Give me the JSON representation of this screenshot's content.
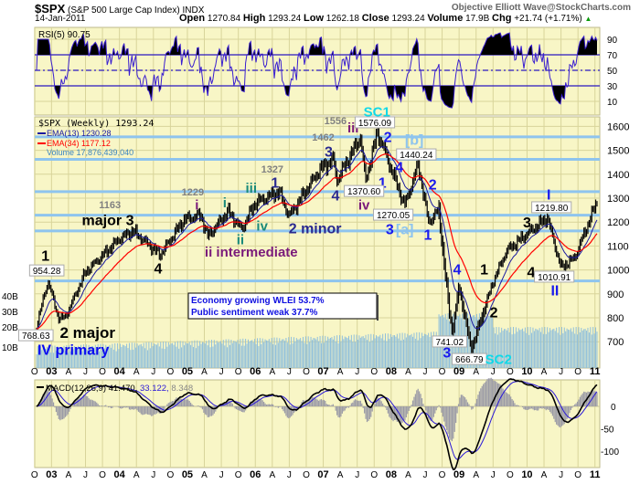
{
  "header": {
    "symbol": "$SPX",
    "name": "(S&P 500 Large Cap Index) INDX",
    "brand": "Objective Elliott Wave@StockCharts.com",
    "date": "14-Jan-2011",
    "open_label": "Open",
    "open": "1270.84",
    "high_label": "High",
    "high": "1293.24",
    "low_label": "Low",
    "low": "1262.18",
    "close_label": "Close",
    "close": "1293.24",
    "volume_label": "Volume",
    "volume": "17.9B",
    "chg_label": "Chg",
    "chg": "+21.74 (+1.71%)",
    "chg_icon": "up-triangle-icon"
  },
  "colors": {
    "panel_bg": "#f8f6c6",
    "grid": "#d8d49a",
    "ema13": "#1a1aa0",
    "ema34": "#ff0000",
    "volume": "#8fbfdc",
    "hline": "#8ec4ee",
    "rsi": "#3a1fd0",
    "macd": "#000000",
    "signal": "#2a18d8",
    "hist": "#9a9aa6",
    "up": "#0a9a0a"
  },
  "chart_data": [
    {
      "panel": "rsi",
      "type": "line",
      "legend": "RSI(5) 90.75",
      "yticks": [
        90,
        70,
        50,
        30,
        10
      ],
      "ylim": [
        0,
        100
      ],
      "levels": [
        70,
        50,
        30
      ]
    },
    {
      "panel": "price",
      "type": "bar",
      "legend": {
        "title": "$SPX (Weekly) 1293.24",
        "ema13": "EMA(13) 1230.28",
        "ema34": "EMA(34) 1177.12",
        "volume": "Volume 17,876,439,040"
      },
      "yticks": [
        1600,
        1500,
        1400,
        1300,
        1200,
        1100,
        1000,
        900,
        800,
        700
      ],
      "ylim": [
        620,
        1640
      ],
      "volume_ticks": [
        "40B",
        "30B",
        "20B",
        "10B"
      ],
      "horizontal_levels": [
        1556,
        1462,
        1327,
        1229,
        1163,
        954
      ],
      "x": [
        2002.78,
        2002.9,
        2002.95,
        2003.1,
        2003.2,
        2003.5,
        2004.0,
        2004.2,
        2004.6,
        2004.95,
        2005.2,
        2005.3,
        2005.6,
        2005.8,
        2006.0,
        2006.35,
        2006.5,
        2006.95,
        2007.15,
        2007.2,
        2007.55,
        2007.62,
        2007.8,
        2008.2,
        2008.4,
        2008.55,
        2008.7,
        2008.85,
        2008.9,
        2009.0,
        2009.18,
        2009.5,
        2009.7,
        2010.0,
        2010.3,
        2010.5,
        2010.7,
        2011.04
      ],
      "values": [
        768,
        900,
        954,
        800,
        800,
        990,
        1130,
        1163,
        1063,
        1210,
        1229,
        1140,
        1245,
        1170,
        1280,
        1327,
        1225,
        1420,
        1462,
        1374,
        1556,
        1370,
        1576,
        1270,
        1440,
        1200,
        1250,
        840,
        741,
        930,
        667,
        950,
        1080,
        1150,
        1219,
        1010,
        1050,
        1293
      ],
      "annotations": [
        {
          "text": "1",
          "t": 2002.91,
          "p": 1060,
          "color": "#000000",
          "size": 16
        },
        {
          "text": "954.28",
          "t": 2002.93,
          "p": 998,
          "box": true
        },
        {
          "text": "768.63",
          "t": 2002.77,
          "p": 727,
          "box": true
        },
        {
          "text": "2 major",
          "t": 2003.53,
          "p": 739,
          "color": "#000000",
          "size": 17
        },
        {
          "text": "IV primary",
          "t": 2003.32,
          "p": 666,
          "color": "#0a0af0",
          "size": 16
        },
        {
          "text": "1163",
          "t": 2003.86,
          "p": 1273,
          "color": "#808080",
          "size": 11
        },
        {
          "text": "major 3",
          "t": 2003.83,
          "p": 1208,
          "color": "#000000",
          "size": 16
        },
        {
          "text": "4",
          "t": 2004.57,
          "p": 1006,
          "color": "#000000",
          "size": 16
        },
        {
          "text": "1229",
          "t": 2005.08,
          "p": 1327,
          "color": "#808080",
          "size": 11
        },
        {
          "text": "i",
          "t": 2005.14,
          "p": 1273,
          "color": "#7a1a7a",
          "size": 15
        },
        {
          "text": "i",
          "t": 2005.55,
          "p": 1281,
          "color": "#1a8a7a",
          "size": 15
        },
        {
          "text": "iii",
          "t": 2005.94,
          "p": 1342,
          "color": "#1a8a7a",
          "size": 15
        },
        {
          "text": "1327",
          "t": 2006.25,
          "p": 1422,
          "color": "#808080",
          "size": 11
        },
        {
          "text": "1",
          "t": 2006.29,
          "p": 1365,
          "color": "#2a2a90",
          "size": 16
        },
        {
          "text": "iv",
          "t": 2006.1,
          "p": 1185,
          "color": "#1a8a7a",
          "size": 15
        },
        {
          "text": "ii",
          "t": 2005.78,
          "p": 1128,
          "color": "#1a8a7a",
          "size": 15
        },
        {
          "text": "ii intermediate",
          "t": 2005.94,
          "p": 1075,
          "color": "#7a1a7a",
          "size": 15
        },
        {
          "text": "2 minor",
          "t": 2006.88,
          "p": 1174,
          "color": "#2a2a90",
          "size": 16
        },
        {
          "text": "SC1",
          "t": 2007.79,
          "p": 1662,
          "color": "#10d8e8",
          "size": 15
        },
        {
          "text": "1556",
          "t": 2007.18,
          "p": 1624,
          "color": "#808080",
          "size": 11
        },
        {
          "text": "iii",
          "t": 2007.44,
          "p": 1594,
          "color": "#7a1a7a",
          "size": 15
        },
        {
          "text": "1576.09",
          "t": 2007.76,
          "p": 1617,
          "box": true
        },
        {
          "text": "1462",
          "t": 2007.0,
          "p": 1556,
          "color": "#808080",
          "size": 11
        },
        {
          "text": "2",
          "t": 2007.95,
          "p": 1556,
          "color": "#1a1aee",
          "size": 16
        },
        {
          "text": "[b]",
          "t": 2008.34,
          "p": 1544,
          "color": "#8ec4ee",
          "size": 16
        },
        {
          "text": "3",
          "t": 2007.08,
          "p": 1495,
          "color": "#2a2a90",
          "size": 16
        },
        {
          "text": "1440.24",
          "t": 2008.37,
          "p": 1483,
          "box": true
        },
        {
          "text": "4",
          "t": 2008.12,
          "p": 1430,
          "color": "#1a1aee",
          "size": 16
        },
        {
          "text": "1",
          "t": 2007.87,
          "p": 1365,
          "color": "#1a1aee",
          "size": 16
        },
        {
          "text": "2",
          "t": 2008.61,
          "p": 1357,
          "color": "#1a1aee",
          "size": 16
        },
        {
          "text": "4",
          "t": 2007.18,
          "p": 1311,
          "color": "#2a2a90",
          "size": 16
        },
        {
          "text": "1370.60",
          "t": 2007.6,
          "p": 1330,
          "box": true
        },
        {
          "text": "iv",
          "t": 2007.6,
          "p": 1273,
          "color": "#7a1a7a",
          "size": 15
        },
        {
          "text": "1270.05",
          "t": 2008.03,
          "p": 1231,
          "box": true
        },
        {
          "text": "3",
          "t": 2007.98,
          "p": 1170,
          "color": "#1a1aee",
          "size": 16
        },
        {
          "text": "[a]",
          "t": 2008.2,
          "p": 1170,
          "color": "#8ec4ee",
          "size": 16
        },
        {
          "text": "1",
          "t": 2008.54,
          "p": 1147,
          "color": "#1a1aee",
          "size": 16
        },
        {
          "text": "4",
          "t": 2008.97,
          "p": 1002,
          "color": "#1a1aee",
          "size": 16
        },
        {
          "text": "1",
          "t": 2009.37,
          "p": 1002,
          "color": "#000000",
          "size": 16
        },
        {
          "text": "2",
          "t": 2009.51,
          "p": 823,
          "color": "#000000",
          "size": 16
        },
        {
          "text": "741.02",
          "t": 2008.86,
          "p": 701,
          "box": true
        },
        {
          "text": "3",
          "t": 2008.82,
          "p": 655,
          "color": "#1a1aee",
          "size": 16
        },
        {
          "text": "666.79",
          "t": 2009.15,
          "p": 628,
          "box": true
        },
        {
          "text": "SC2",
          "t": 2009.58,
          "p": 628,
          "color": "#10d8e8",
          "size": 15
        },
        {
          "text": "I",
          "t": 2010.32,
          "p": 1315,
          "color": "#1a1aee",
          "size": 16
        },
        {
          "text": "1219.80",
          "t": 2010.36,
          "p": 1262,
          "box": true
        },
        {
          "text": "3",
          "t": 2010.0,
          "p": 1200,
          "color": "#000000",
          "size": 16
        },
        {
          "text": "4",
          "t": 2010.06,
          "p": 991,
          "color": "#000000",
          "size": 16
        },
        {
          "text": "1010.91",
          "t": 2010.4,
          "p": 972,
          "box": true
        },
        {
          "text": "II",
          "t": 2010.41,
          "p": 915,
          "color": "#1a1aee",
          "size": 16
        }
      ],
      "info_box": [
        "Economy growing WLEI 53.7%",
        "Public sentiment weak 37.7%"
      ]
    },
    {
      "panel": "macd",
      "type": "line",
      "legend": {
        "macd": "MACD(12,26,9)",
        "macd_value": "41.470,",
        "signal_value": "33.122,",
        "hist_value": "8.348"
      },
      "yticks": [
        0,
        -50,
        -100
      ]
    }
  ],
  "x_ticks": [
    "O",
    "03",
    "A",
    "J",
    "O",
    "04",
    "A",
    "J",
    "O",
    "05",
    "A",
    "J",
    "O",
    "06",
    "A",
    "J",
    "O",
    "07",
    "A",
    "J",
    "O",
    "08",
    "A",
    "J",
    "O",
    "09",
    "A",
    "J",
    "O",
    "10",
    "A",
    "J",
    "O",
    "11"
  ]
}
